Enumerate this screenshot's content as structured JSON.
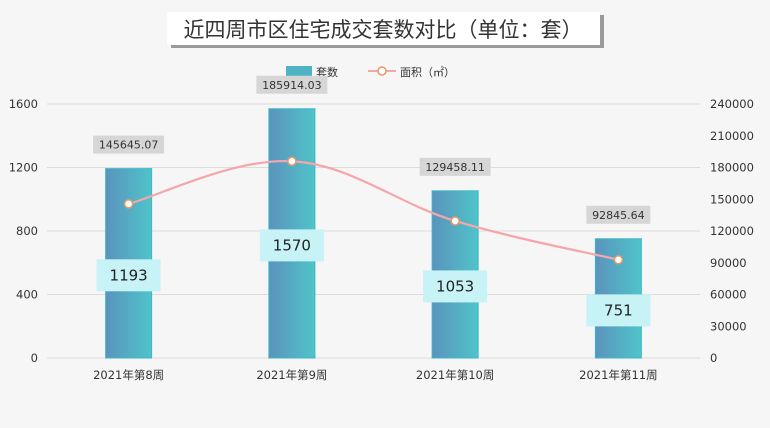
{
  "chart_data": {
    "type": "bar",
    "title": "近四周市区住宅成交套数对比（单位：套）",
    "categories": [
      "2021年第8周",
      "2021年第9周",
      "2021年第10周",
      "2021年第11周"
    ],
    "series": [
      {
        "name": "套数",
        "type": "bar",
        "axis": "left",
        "values": [
          1193,
          1570,
          1053,
          751
        ]
      },
      {
        "name": "面积（㎡）",
        "type": "line",
        "axis": "right",
        "values": [
          145645.07,
          185914.03,
          129458.11,
          92845.64
        ]
      }
    ],
    "left_axis": {
      "ylim": [
        0,
        1600
      ],
      "ticks": [
        "0",
        "400",
        "800",
        "1200",
        "1600"
      ]
    },
    "right_axis": {
      "ylim": [
        0,
        240000
      ],
      "ticks": [
        "0",
        "30000",
        "60000",
        "90000",
        "120000",
        "150000",
        "180000",
        "210000",
        "240000"
      ]
    },
    "grid": true,
    "legend": "top-center",
    "colors": {
      "bar": "#4fb3c4",
      "line": "#f4a6ac",
      "bar_label_bg": "#c7f2f6"
    }
  }
}
